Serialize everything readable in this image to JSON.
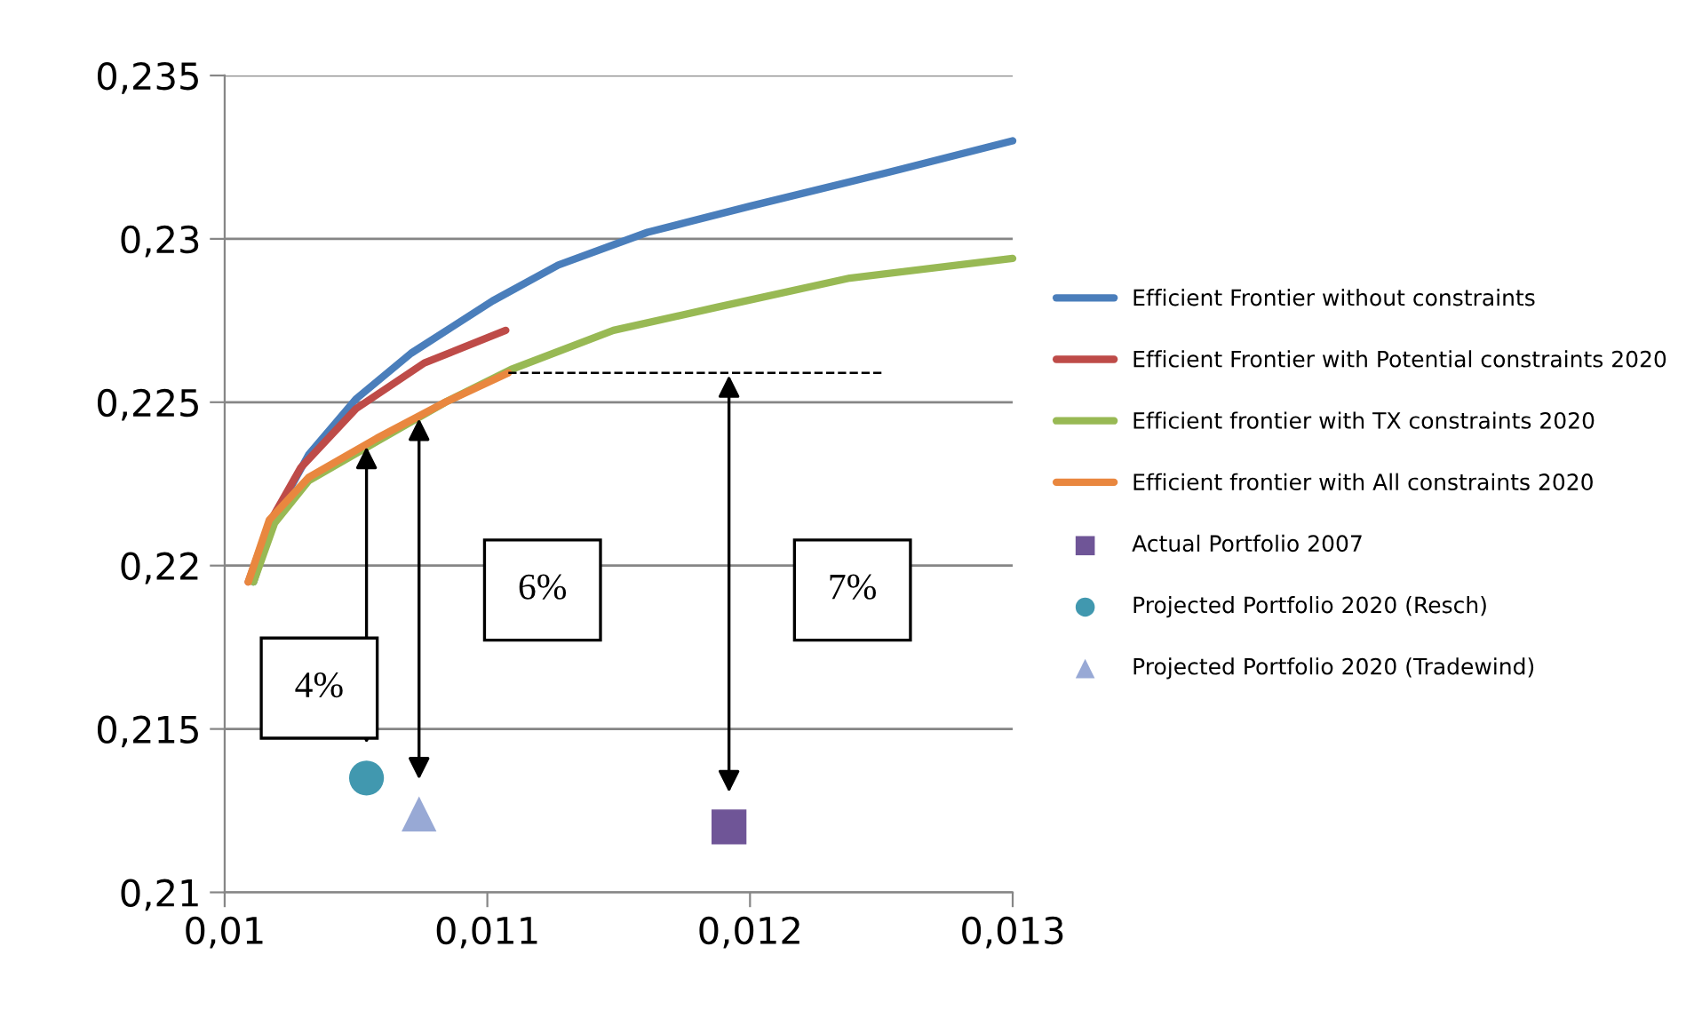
{
  "chart_data": {
    "type": "line",
    "xlim": [
      0.01,
      0.013
    ],
    "xticks": [
      {
        "value": 0.01,
        "label": "0,01"
      },
      {
        "value": 0.011,
        "label": "0,011"
      },
      {
        "value": 0.012,
        "label": "0,012"
      },
      {
        "value": 0.013,
        "label": "0,013"
      }
    ],
    "ylim": [
      0.21,
      0.235
    ],
    "yticks": [
      {
        "value": 0.21,
        "label": "0,21"
      },
      {
        "value": 0.215,
        "label": "0,215"
      },
      {
        "value": 0.22,
        "label": "0,22"
      },
      {
        "value": 0.225,
        "label": "0,225"
      },
      {
        "value": 0.23,
        "label": "0,23"
      },
      {
        "value": 0.235,
        "label": "0,235"
      }
    ],
    "grid": "y",
    "legend": "right",
    "series": [
      {
        "name": "Efficient Frontier without constraints",
        "color": "#4a7ebb",
        "x": [
          0.01011,
          0.01019,
          0.01032,
          0.0105,
          0.01071,
          0.01102,
          0.01127,
          0.01161,
          0.012,
          0.01251,
          0.013
        ],
        "values": [
          0.2195,
          0.2215,
          0.2234,
          0.2251,
          0.2265,
          0.2281,
          0.2292,
          0.2302,
          0.231,
          0.232,
          0.233
        ]
      },
      {
        "name": "Efficient Frontier with Potential constraints 2020",
        "color": "#be4b48",
        "x": [
          0.01009,
          0.01017,
          0.01029,
          0.0105,
          0.01076,
          0.01107
        ],
        "values": [
          0.2195,
          0.2213,
          0.223,
          0.2248,
          0.2262,
          0.2272
        ]
      },
      {
        "name": "Efficient frontier with TX constraints 2020",
        "color": "#98b954",
        "x": [
          0.01011,
          0.01019,
          0.01032,
          0.01058,
          0.01084,
          0.01109,
          0.01148,
          0.01187,
          0.01238,
          0.013
        ],
        "values": [
          0.2195,
          0.2213,
          0.2226,
          0.2238,
          0.225,
          0.226,
          0.2272,
          0.2279,
          0.2288,
          0.2294
        ]
      },
      {
        "name": "Efficient frontier with All constraints 2020",
        "color": "#e9873f",
        "x": [
          0.01009,
          0.01017,
          0.01032,
          0.01058,
          0.01084,
          0.01108
        ],
        "values": [
          0.2195,
          0.2214,
          0.2227,
          0.2239,
          0.225,
          0.2259
        ]
      },
      {
        "name": "Actual Portfolio 2007",
        "type": "scatter",
        "marker": "square",
        "color": "#6f5597",
        "x": [
          0.01192
        ],
        "values": [
          0.212
        ]
      },
      {
        "name": "Projected Portfolio 2020 (Resch)",
        "type": "scatter",
        "marker": "circle",
        "color": "#4198af",
        "x": [
          0.01054
        ],
        "values": [
          0.2135
        ]
      },
      {
        "name": "Projected Portfolio 2020 (Tradewind)",
        "type": "scatter",
        "marker": "triangle",
        "color": "#98a9d5",
        "x": [
          0.01074
        ],
        "values": [
          0.2124
        ]
      },
      {
        "type": "line",
        "line_style": "dashed",
        "color": "#000000",
        "x": [
          0.01108,
          0.01251
        ],
        "values": [
          0.2259,
          0.2259
        ]
      }
    ],
    "annotations": [
      "4%",
      "6%",
      "7%"
    ]
  }
}
